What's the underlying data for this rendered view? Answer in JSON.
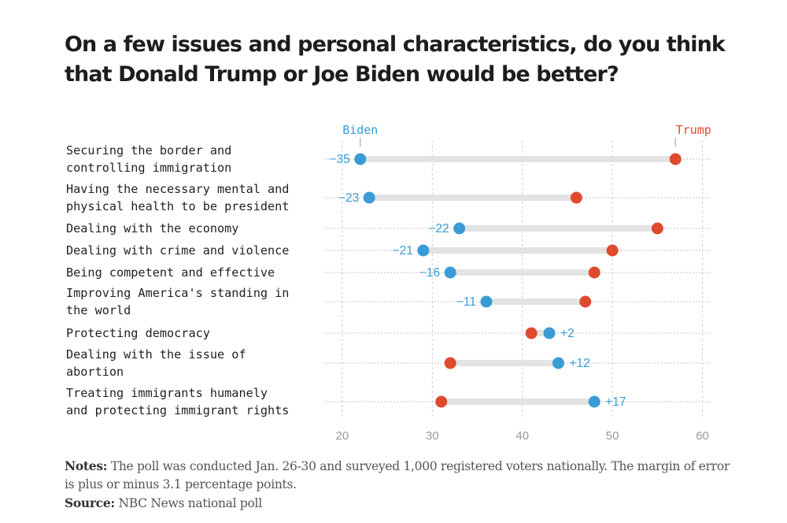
{
  "title": "On a few issues and personal characteristics, do you think that Donald Trump or Joe Biden would be better?",
  "notes": {
    "notes_label": "Notes:",
    "notes_text": "The poll was conducted Jan. 26-30 and surveyed 1,000 registered voters nationally. The margin of error is plus or minus 3.1 percentage points.",
    "source_label": "Source:",
    "source_text": "NBC News national poll"
  },
  "colors": {
    "biden": "#3a9bd5",
    "trump": "#e04a2e",
    "connector": "#e3e3e3"
  },
  "chart_data": {
    "type": "dot-plot",
    "series": [
      {
        "name": "Biden",
        "color": "#3a9bd5"
      },
      {
        "name": "Trump",
        "color": "#e04a2e"
      }
    ],
    "xlim": [
      18,
      61
    ],
    "xticks": [
      20,
      30,
      40,
      50,
      60
    ],
    "grid": true,
    "rows": [
      {
        "label": [
          "Securing the border and",
          "controlling immigration"
        ],
        "biden": 22,
        "trump": 57,
        "diff": "−35"
      },
      {
        "label": [
          "Having the necessary mental and",
          "physical health to be president"
        ],
        "biden": 23,
        "trump": 46,
        "diff": "−23"
      },
      {
        "label": [
          "Dealing with the economy"
        ],
        "biden": 33,
        "trump": 55,
        "diff": "−22"
      },
      {
        "label": [
          "Dealing with crime and violence"
        ],
        "biden": 29,
        "trump": 50,
        "diff": "−21"
      },
      {
        "label": [
          "Being competent and effective"
        ],
        "biden": 32,
        "trump": 48,
        "diff": "−16"
      },
      {
        "label": [
          "Improving America's standing in",
          "the world"
        ],
        "biden": 36,
        "trump": 47,
        "diff": "−11"
      },
      {
        "label": [
          "Protecting democracy"
        ],
        "biden": 43,
        "trump": 41,
        "diff": "+2"
      },
      {
        "label": [
          "Dealing with the issue of",
          "abortion"
        ],
        "biden": 44,
        "trump": 32,
        "diff": "+12"
      },
      {
        "label": [
          "Treating immigrants humanely",
          "and protecting immigrant rights"
        ],
        "biden": 48,
        "trump": 31,
        "diff": "+17"
      }
    ]
  }
}
